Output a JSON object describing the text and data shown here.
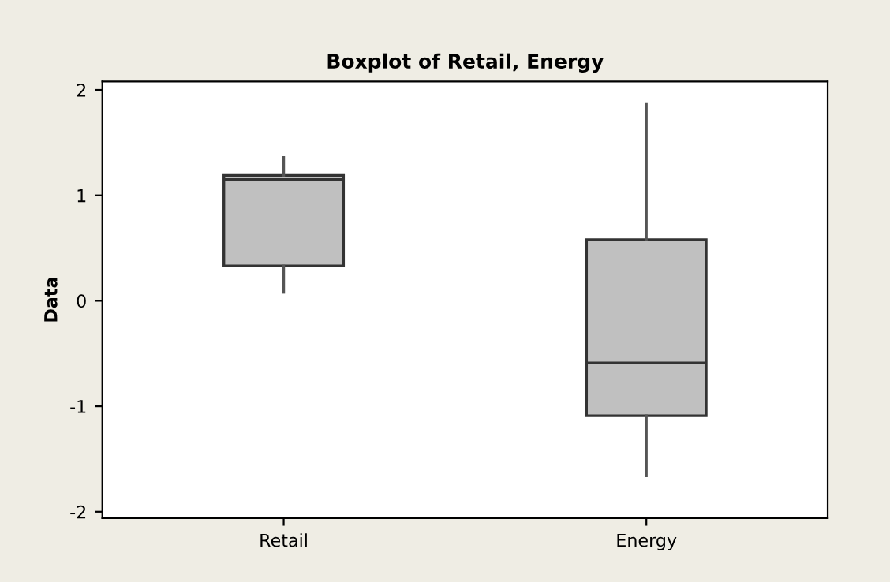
{
  "chart_data": {
    "type": "box",
    "title": "Boxplot of Retail, Energy",
    "ylabel": "Data",
    "categories": [
      "Retail",
      "Energy"
    ],
    "series": [
      {
        "color": "#c0c0c0",
        "boxes": [
          {
            "low": 0.08,
            "q1": 0.33,
            "median": 1.15,
            "q3": 1.19,
            "high": 1.36
          },
          {
            "low": -1.66,
            "q1": -1.09,
            "median": -0.59,
            "q3": 0.58,
            "high": 1.87
          }
        ]
      }
    ],
    "ylim": [
      -2.06,
      2.08
    ],
    "yticks": [
      -2,
      -1,
      0,
      1,
      2
    ],
    "grid": false,
    "legend": false
  }
}
